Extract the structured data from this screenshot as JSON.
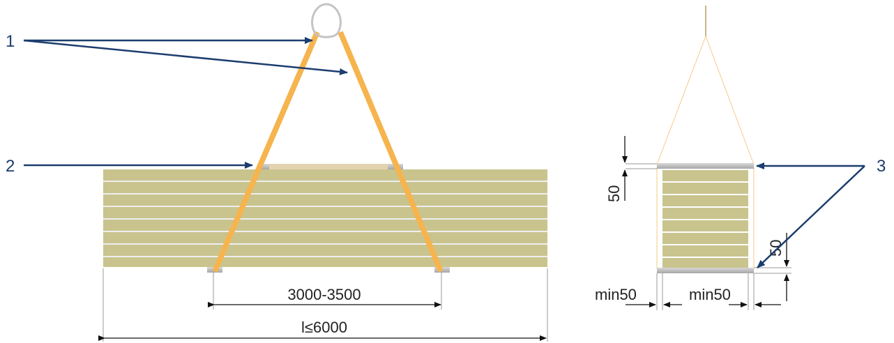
{
  "callouts": [
    "1",
    "2",
    "3"
  ],
  "dimensions": {
    "spacing": "3000-3500",
    "length": "l≤6000",
    "side_height_top": "50",
    "side_height_bottom": "50",
    "min_left": "min50",
    "min_right": "min50"
  },
  "colors": {
    "panel_face": "#c9c48e",
    "panel_seam": "#e9e9e9",
    "strap": "#f6b44f",
    "arrow": "#1c3d6e",
    "spacer_board": "#e4d3b0",
    "spacer_metal": "#b8b8b8"
  },
  "panel_count": 8
}
